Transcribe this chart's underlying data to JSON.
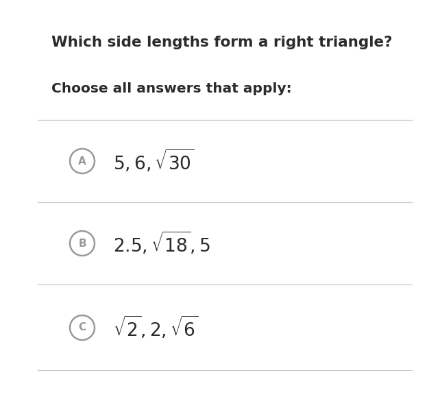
{
  "title": "Which side lengths form a right triangle?",
  "subtitle": "Choose all answers that apply:",
  "background_color": "#ffffff",
  "title_color": "#2b2b2b",
  "subtitle_color": "#2b2b2b",
  "title_fontsize": 15.5,
  "subtitle_fontsize": 14.5,
  "options": [
    {
      "label": "A",
      "text": "$5, 6, \\sqrt{30}$"
    },
    {
      "label": "B",
      "text": "$2.5, \\sqrt{18}, 5$"
    },
    {
      "label": "C",
      "text": "$\\sqrt{2}, 2, \\sqrt{6}$"
    }
  ],
  "circle_color": "#999999",
  "line_color": "#cccccc",
  "option_fontsize": 19,
  "label_fontsize": 11,
  "fig_width": 6.26,
  "fig_height": 5.85,
  "dpi": 100
}
